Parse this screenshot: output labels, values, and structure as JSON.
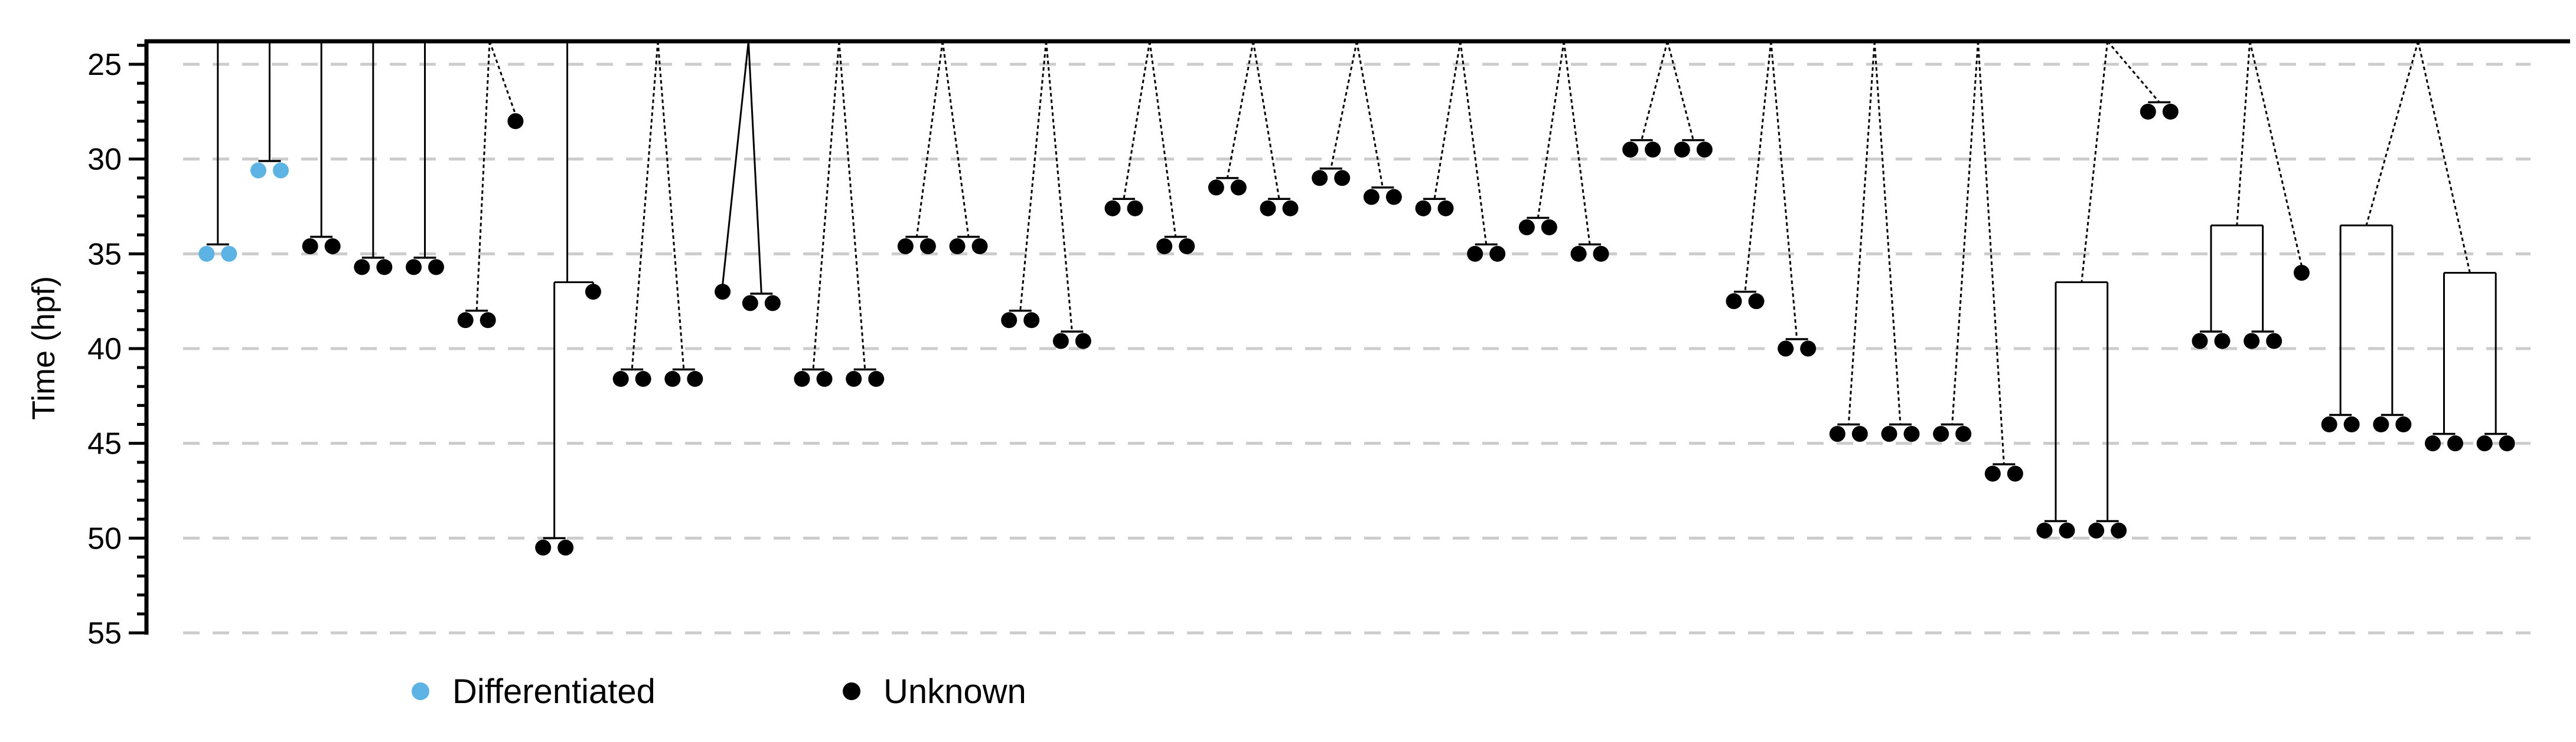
{
  "chart_data": {
    "type": "lineage-tree",
    "ylabel": "Time (hpf)",
    "ylim": [
      55,
      23.7
    ],
    "yticks": [
      25,
      30,
      35,
      40,
      45,
      50,
      55
    ],
    "grid": "horizontal dashed",
    "legend_placement": "bottom-left",
    "legend": [
      {
        "label": "Differentiated",
        "color": "#5DB3E4"
      },
      {
        "label": "Unknown",
        "color": "#000000"
      }
    ],
    "colors": {
      "differentiated": "#5DB3E4",
      "unknown": "#000000",
      "grid": "#cccccc"
    },
    "trees": [
      {
        "root": {
          "t": 35.0,
          "status": "differentiated"
        }
      },
      {
        "root": {
          "t": 30.6,
          "status": "differentiated"
        }
      },
      {
        "root": {
          "t": 34.6,
          "status": "unknown"
        }
      },
      {
        "root": {
          "t": 35.7,
          "status": "unknown"
        }
      },
      {
        "root": {
          "t": 35.7,
          "status": "unknown"
        }
      },
      {
        "root": {
          "dashed": true,
          "kids": [
            {
              "t": 38.5,
              "status": "unknown"
            },
            {
              "t": 28.0,
              "single": true,
              "status": "unknown"
            }
          ]
        }
      },
      {
        "root": {
          "t": 36.5,
          "kids": [
            {
              "t": 50.5,
              "status": "unknown"
            },
            {
              "t": 37.0,
              "single": true,
              "status": "unknown"
            }
          ]
        }
      },
      {
        "root": {
          "dashed": true,
          "kids": [
            {
              "t": 41.6,
              "status": "unknown"
            },
            {
              "t": 41.6,
              "status": "unknown"
            }
          ]
        }
      },
      {
        "root": {
          "kids": [
            {
              "t": 37.0,
              "single": true,
              "status": "unknown"
            },
            {
              "t": 37.6,
              "status": "unknown"
            }
          ]
        }
      },
      {
        "root": {
          "dashed": true,
          "kids": [
            {
              "t": 41.6,
              "status": "unknown"
            },
            {
              "t": 41.6,
              "status": "unknown"
            }
          ]
        }
      },
      {
        "root": {
          "dashed": true,
          "kids": [
            {
              "t": 34.6,
              "status": "unknown"
            },
            {
              "t": 34.6,
              "status": "unknown"
            }
          ]
        }
      },
      {
        "root": {
          "dashed": true,
          "kids": [
            {
              "t": 38.5,
              "status": "unknown"
            },
            {
              "t": 39.6,
              "status": "unknown"
            }
          ]
        }
      },
      {
        "root": {
          "dashed": true,
          "kids": [
            {
              "t": 32.6,
              "status": "unknown"
            },
            {
              "t": 34.6,
              "status": "unknown"
            }
          ]
        }
      },
      {
        "root": {
          "dashed": true,
          "kids": [
            {
              "t": 31.5,
              "status": "unknown"
            },
            {
              "t": 32.6,
              "status": "unknown"
            }
          ]
        }
      },
      {
        "root": {
          "dashed": true,
          "kids": [
            {
              "t": 31.0,
              "status": "unknown"
            },
            {
              "t": 32.0,
              "status": "unknown"
            }
          ]
        }
      },
      {
        "root": {
          "dashed": true,
          "kids": [
            {
              "t": 32.6,
              "status": "unknown"
            },
            {
              "t": 35.0,
              "status": "unknown"
            }
          ]
        }
      },
      {
        "root": {
          "dashed": true,
          "kids": [
            {
              "t": 33.6,
              "status": "unknown"
            },
            {
              "t": 35.0,
              "status": "unknown"
            }
          ]
        }
      },
      {
        "root": {
          "dashed": true,
          "kids": [
            {
              "t": 29.5,
              "status": "unknown"
            },
            {
              "t": 29.5,
              "status": "unknown"
            }
          ]
        }
      },
      {
        "root": {
          "dashed": true,
          "kids": [
            {
              "t": 37.5,
              "status": "unknown"
            },
            {
              "t": 40.0,
              "status": "unknown"
            }
          ]
        }
      },
      {
        "root": {
          "dashed": true,
          "kids": [
            {
              "t": 44.5,
              "status": "unknown"
            },
            {
              "t": 44.5,
              "status": "unknown"
            }
          ]
        }
      },
      {
        "root": {
          "dashed": true,
          "kids": [
            {
              "t": 44.5,
              "status": "unknown"
            },
            {
              "t": 46.6,
              "status": "unknown"
            }
          ]
        }
      },
      {
        "root": {
          "dashed": true,
          "kids": [
            {
              "t": 36.5,
              "kids": [
                {
                  "t": 49.6,
                  "status": "unknown"
                },
                {
                  "t": 49.6,
                  "status": "unknown"
                }
              ]
            },
            {
              "t": 27.5,
              "status": "unknown"
            }
          ]
        }
      },
      {
        "root": {
          "dashed": true,
          "kids": [
            {
              "t": 33.5,
              "kids": [
                {
                  "t": 39.6,
                  "status": "unknown"
                },
                {
                  "t": 39.6,
                  "status": "unknown"
                }
              ]
            },
            {
              "t": 36.0,
              "single": true,
              "status": "unknown"
            }
          ]
        }
      },
      {
        "root": {
          "dashed": true,
          "kids": [
            {
              "t": 33.5,
              "kids": [
                {
                  "t": 44.0,
                  "status": "unknown"
                },
                {
                  "t": 44.0,
                  "status": "unknown"
                }
              ]
            },
            {
              "t": 36.0,
              "kids": [
                {
                  "t": 45.0,
                  "status": "unknown"
                },
                {
                  "t": 45.0,
                  "status": "unknown"
                }
              ]
            }
          ]
        }
      }
    ]
  }
}
